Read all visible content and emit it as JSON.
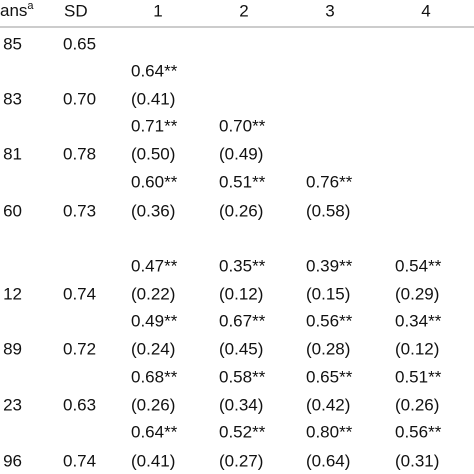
{
  "table": {
    "header": {
      "means": "ans",
      "means_note": "a",
      "sd": "SD",
      "columns": [
        "1",
        "2",
        "3",
        "4"
      ]
    },
    "rows": [
      [
        "85",
        "0.65",
        null,
        null,
        null,
        null
      ],
      [
        null,
        null,
        "0.64**",
        null,
        null,
        null
      ],
      [
        "83",
        "0.70",
        "(0.41)",
        null,
        null,
        null
      ],
      [
        null,
        null,
        "0.71**",
        "0.70**",
        null,
        null
      ],
      [
        "81",
        "0.78",
        "(0.50)",
        "(0.49)",
        null,
        null
      ],
      [
        null,
        null,
        "0.60**",
        "0.51**",
        "0.76**",
        null
      ],
      [
        "60",
        "0.73",
        "(0.36)",
        "(0.26)",
        "(0.58)",
        null
      ],
      [
        null,
        null,
        "0.47**",
        "0.35**",
        "0.39**",
        "0.54**"
      ],
      [
        "12",
        "0.74",
        "(0.22)",
        "(0.12)",
        "(0.15)",
        "(0.29)"
      ],
      [
        null,
        null,
        "0.49**",
        "0.67**",
        "0.56**",
        "0.34**"
      ],
      [
        "89",
        "0.72",
        "(0.24)",
        "(0.45)",
        "(0.28)",
        "(0.12)"
      ],
      [
        null,
        null,
        "0.68**",
        "0.58**",
        "0.65**",
        "0.51**"
      ],
      [
        "23",
        "0.63",
        "(0.26)",
        "(0.34)",
        "(0.42)",
        "(0.26)"
      ],
      [
        null,
        null,
        "0.64**",
        "0.52**",
        "0.80**",
        "0.56**"
      ],
      [
        "96",
        "0.74",
        "(0.41)",
        "(0.27)",
        "(0.64)",
        "(0.31)"
      ]
    ]
  }
}
